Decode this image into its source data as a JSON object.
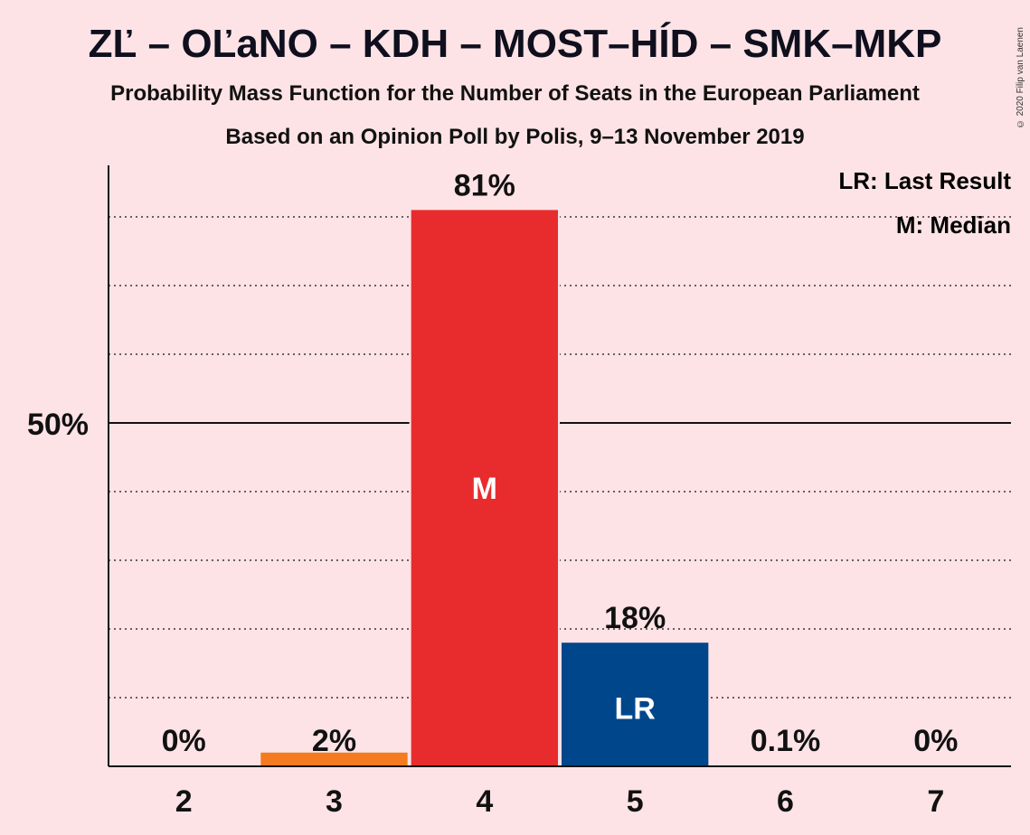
{
  "header": {
    "title": "ZĽ – OĽaNO – KDH – MOST–HÍD – SMK–MKP",
    "subtitle": "Probability Mass Function for the Number of Seats in the European Parliament",
    "source": "Based on an Opinion Poll by Polis, 9–13 November 2019",
    "copyright": "© 2020 Filip van Laenen"
  },
  "legend": {
    "last_result": "LR: Last Result",
    "median": "M: Median"
  },
  "colors": {
    "background": "#fde3e5",
    "bar_orange": "#f47b20",
    "bar_red": "#e82c2e",
    "bar_blue": "#00468b"
  },
  "chart_data": {
    "type": "bar",
    "categories": [
      "2",
      "3",
      "4",
      "5",
      "6",
      "7"
    ],
    "values": [
      0,
      2,
      81,
      18,
      0.1,
      0
    ],
    "labels": [
      "0%",
      "2%",
      "81%",
      "18%",
      "0.1%",
      "0%"
    ],
    "bar_colors": [
      "#e82c2e",
      "#f47b20",
      "#e82c2e",
      "#00468b",
      "#e82c2e",
      "#e82c2e"
    ],
    "inner_labels": [
      "",
      "",
      "M",
      "LR",
      "",
      ""
    ],
    "ylim": [
      0,
      88
    ],
    "ytick_major": {
      "value": 50,
      "label": "50%"
    },
    "ygrid_step": 10,
    "grid": true,
    "legend_position": "top-right"
  }
}
